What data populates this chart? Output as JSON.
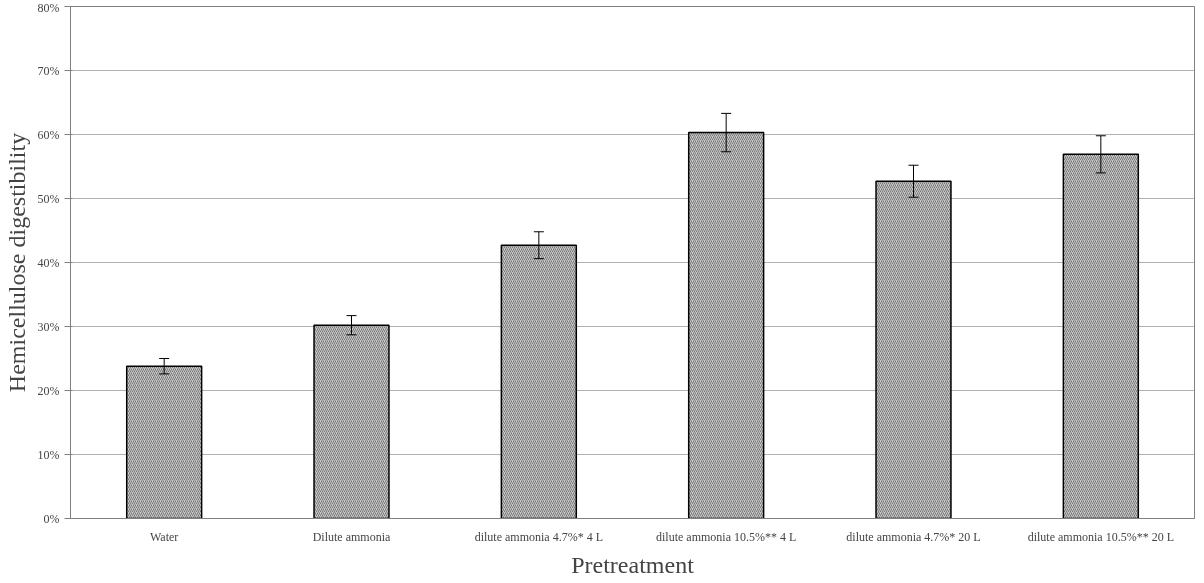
{
  "chart_data": {
    "type": "bar",
    "xlabel": "Pretreatment",
    "ylabel": "Hemicellulose digestibility",
    "categories": [
      "Water",
      "Dilute ammonia",
      "dilute ammonia 4.7%* 4 L",
      "dilute ammonia 10.5%** 4 L",
      "dilute ammonia 4.7%* 20 L",
      "dilute ammonia 10.5%** 20 L"
    ],
    "values": [
      23.8,
      30.2,
      42.7,
      60.3,
      52.7,
      56.9
    ],
    "errors": [
      1.2,
      1.5,
      2.1,
      3.0,
      2.5,
      2.9
    ],
    "color": "#c8c8c8",
    "ylim": [
      0,
      80
    ],
    "yticks": [
      {
        "value": 0,
        "label": "0%"
      },
      {
        "value": 10,
        "label": "10%"
      },
      {
        "value": 20,
        "label": "20%"
      },
      {
        "value": 30,
        "label": "30%"
      },
      {
        "value": 40,
        "label": "40%"
      },
      {
        "value": 50,
        "label": "50%"
      },
      {
        "value": 60,
        "label": "60%"
      },
      {
        "value": 70,
        "label": "70%"
      },
      {
        "value": 80,
        "label": "80%"
      }
    ],
    "grid": "y"
  }
}
